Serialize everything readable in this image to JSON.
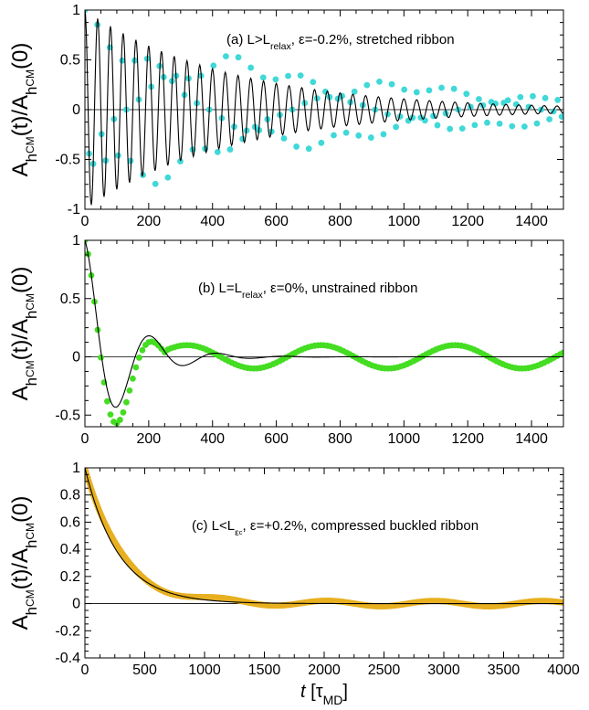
{
  "chart_data": [
    {
      "type": "line",
      "annotation": "(a) L>L_relax, ε=-0.2%, stretched ribbon",
      "annotation_parts": {
        "lead": "(a) L>L",
        "sub": "relax",
        "tail": ", ε=-0.2%, stretched ribbon"
      },
      "ylabel": "A_hCM(t)/A_hCM(0)",
      "xlim": [
        0,
        1500
      ],
      "ylim": [
        -1,
        1
      ],
      "xticks": [
        0,
        200,
        400,
        600,
        800,
        1000,
        1200,
        1400
      ],
      "xtick_labels": [
        "0",
        "200",
        "400",
        "600",
        "800",
        "1000",
        "1200",
        "1400"
      ],
      "yticks": [
        -1,
        -0.5,
        0,
        0.5,
        1
      ],
      "ytick_labels": [
        "-1",
        "-0.5",
        "0",
        "0.5",
        "1"
      ],
      "grid": false,
      "series": [
        {
          "kind": "line",
          "color": "#000000",
          "model": {
            "form": "cos_damped",
            "amplitude": 1.0,
            "period": 40,
            "tau": 450,
            "offset": 0,
            "x_range": [
              0,
              1500
            ],
            "step": 2
          }
        },
        {
          "kind": "scatter",
          "color": "#40d8d8",
          "model": {
            "form": "cos_damped_beat",
            "amplitude": 1.0,
            "period": 40,
            "tau": 800,
            "beat_period": 230,
            "offset": 0,
            "x_range": [
              0,
              1500
            ],
            "step": 13
          }
        }
      ]
    },
    {
      "type": "line",
      "annotation": "(b) L=L_relax, ε=0%, unstrained ribbon",
      "annotation_parts": {
        "lead": "(b) L=L",
        "sub": "relax",
        "tail": ", ε=0%, unstrained ribbon"
      },
      "ylabel": "A_hCM(t)/A_hCM(0)",
      "xlim": [
        0,
        1500
      ],
      "ylim": [
        -0.6,
        1
      ],
      "xticks": [
        0,
        200,
        400,
        600,
        800,
        1000,
        1200,
        1400
      ],
      "xtick_labels": [
        "0",
        "200",
        "400",
        "600",
        "800",
        "1000",
        "1200",
        "1400"
      ],
      "yticks": [
        -0.5,
        0,
        0.5,
        1
      ],
      "ytick_labels": [
        "-0.5",
        "0",
        "0.5",
        "1"
      ],
      "grid": false,
      "series": [
        {
          "kind": "line",
          "color": "#000000",
          "model": {
            "form": "cos_damped",
            "amplitude": 1.0,
            "period": 210,
            "tau": 120,
            "offset": 0,
            "x_range": [
              0,
              1500
            ],
            "step": 3
          }
        },
        {
          "kind": "scatter",
          "color": "#44dd22",
          "model": {
            "form": "piecewise_b",
            "x_range": [
              0,
              1500
            ],
            "step": 10,
            "early_amplitude": 1.0,
            "early_period": 210,
            "early_tau": 130,
            "late_amplitude": 0.1,
            "late_period": 420,
            "late_phase_x": 320,
            "switch_x": 260
          }
        }
      ]
    },
    {
      "type": "line",
      "annotation": "(c) L<L_εc, ε=+0.2%, compressed buckled ribbon",
      "annotation_parts": {
        "lead": "(c) L<L",
        "sub": "ε",
        "subsub": "c",
        "tail": ", ε=+0.2%, compressed buckled ribbon"
      },
      "ylabel": "A_hCM(t)/A_hCM(0)",
      "xlabel": "t [τ_MD]",
      "xlabel_parts": {
        "italic": "t",
        "lead": " [τ",
        "sub": "MD",
        "tail": "]"
      },
      "xlim": [
        0,
        4000
      ],
      "ylim": [
        -0.4,
        1
      ],
      "xticks": [
        0,
        500,
        1000,
        1500,
        2000,
        2500,
        3000,
        3500,
        4000
      ],
      "xtick_labels": [
        "0",
        "500",
        "1000",
        "1500",
        "2000",
        "2500",
        "3000",
        "3500",
        "4000"
      ],
      "yticks": [
        -0.4,
        -0.2,
        0,
        0.2,
        0.4,
        0.6,
        0.8,
        1
      ],
      "ytick_labels": [
        "-0.4",
        "-0.2",
        "0",
        "0.2",
        "0.4",
        "0.6",
        "0.8",
        "1"
      ],
      "grid": false,
      "series": [
        {
          "kind": "line",
          "color": "#000000",
          "model": {
            "form": "exp_decay",
            "amplitude": 1.0,
            "tau": 280,
            "offset": 0,
            "x_range": [
              0,
              4000
            ],
            "step": 10
          }
        },
        {
          "kind": "scatter",
          "color": "#e8b020",
          "model": {
            "form": "exp_decay_wiggle",
            "amplitude": 1.0,
            "tau": 300,
            "wiggle": 0.02,
            "wiggle_period": 900,
            "x_range": [
              0,
              4000
            ],
            "step": 8
          }
        }
      ]
    }
  ]
}
